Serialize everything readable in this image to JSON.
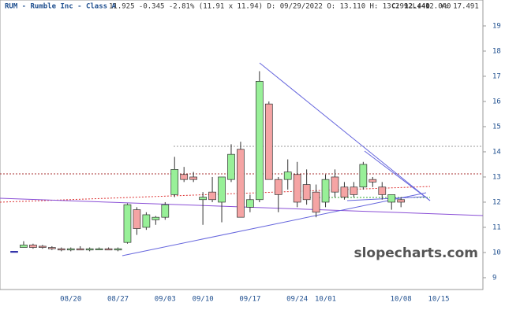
{
  "chart_data": {
    "type": "candlestick",
    "title": "RUM - Rumble Inc - Class A",
    "subtitle": "11.925 -0.345 -2.81% (11.91 x 11.94) D: 09/29/2022 O: 13.110 H: 13.299 L: 12.040",
    "close_label": "C: 12.440",
    "extra_label": "Y: 17.491",
    "watermark": "slopecharts.com",
    "categories": [
      null,
      null,
      null,
      null,
      null,
      null,
      "08/20",
      null,
      null,
      null,
      null,
      "08/27",
      null,
      null,
      null,
      null,
      "09/03",
      null,
      null,
      null,
      "09/10",
      null,
      null,
      null,
      null,
      "09/17",
      null,
      null,
      null,
      null,
      "09/24",
      null,
      null,
      "10/01",
      null,
      null,
      null,
      null,
      null,
      null,
      null,
      "10/08",
      null,
      null,
      null,
      "10/15"
    ],
    "open": [
      10.05,
      10.2,
      10.3,
      10.25,
      10.2,
      10.15,
      10.1,
      10.15,
      10.1,
      10.15,
      10.15,
      10.1,
      10.4,
      11.7,
      11.0,
      11.3,
      11.4,
      12.3,
      13.1,
      13.0,
      12.1,
      12.4,
      12.0,
      12.9,
      14.1,
      11.8,
      12.1,
      15.9,
      12.9,
      12.9,
      13.1,
      12.7,
      12.4,
      12.0,
      13.0,
      12.6,
      12.6,
      12.6,
      12.9,
      12.6,
      12.0,
      12.1,
      null,
      null,
      null,
      null
    ],
    "high": [
      10.05,
      10.45,
      10.35,
      10.3,
      10.25,
      10.2,
      10.2,
      10.25,
      10.2,
      10.2,
      10.2,
      10.2,
      11.95,
      11.8,
      11.6,
      11.45,
      12.0,
      13.8,
      13.4,
      13.2,
      12.4,
      13.0,
      13.0,
      14.3,
      14.4,
      12.3,
      17.2,
      16.0,
      13.0,
      13.7,
      13.6,
      13.3,
      12.7,
      13.1,
      13.3,
      12.8,
      12.8,
      13.6,
      13.0,
      12.8,
      12.3,
      12.2,
      null,
      null,
      null,
      null
    ],
    "low": [
      10.05,
      10.2,
      10.15,
      10.15,
      10.1,
      10.05,
      10.05,
      10.1,
      10.05,
      10.1,
      10.1,
      10.05,
      10.35,
      10.7,
      10.9,
      11.1,
      11.3,
      12.2,
      12.8,
      12.8,
      11.1,
      12.0,
      11.2,
      12.8,
      11.4,
      11.6,
      12.0,
      12.9,
      11.6,
      12.5,
      11.8,
      11.9,
      11.4,
      11.8,
      12.2,
      12.1,
      12.2,
      12.5,
      12.6,
      12.1,
      11.7,
      11.8,
      null,
      null,
      null,
      null
    ],
    "close": [
      10.05,
      10.3,
      10.2,
      10.2,
      10.15,
      10.1,
      10.15,
      10.1,
      10.15,
      10.15,
      10.1,
      10.15,
      11.9,
      10.95,
      11.5,
      11.4,
      11.9,
      13.3,
      12.9,
      12.9,
      12.2,
      12.1,
      13.0,
      13.9,
      11.4,
      12.1,
      16.8,
      12.9,
      12.3,
      13.2,
      12.0,
      12.1,
      11.6,
      12.9,
      12.4,
      12.2,
      12.3,
      13.5,
      12.8,
      12.3,
      12.3,
      12.0,
      null,
      null,
      null,
      null
    ],
    "up_color": "#98f098",
    "down_color": "#f5a4a4",
    "ylim": [
      8.53,
      20.03
    ],
    "yticks": [
      9,
      10,
      11,
      12,
      13,
      14,
      15,
      16,
      17,
      18,
      19
    ]
  }
}
